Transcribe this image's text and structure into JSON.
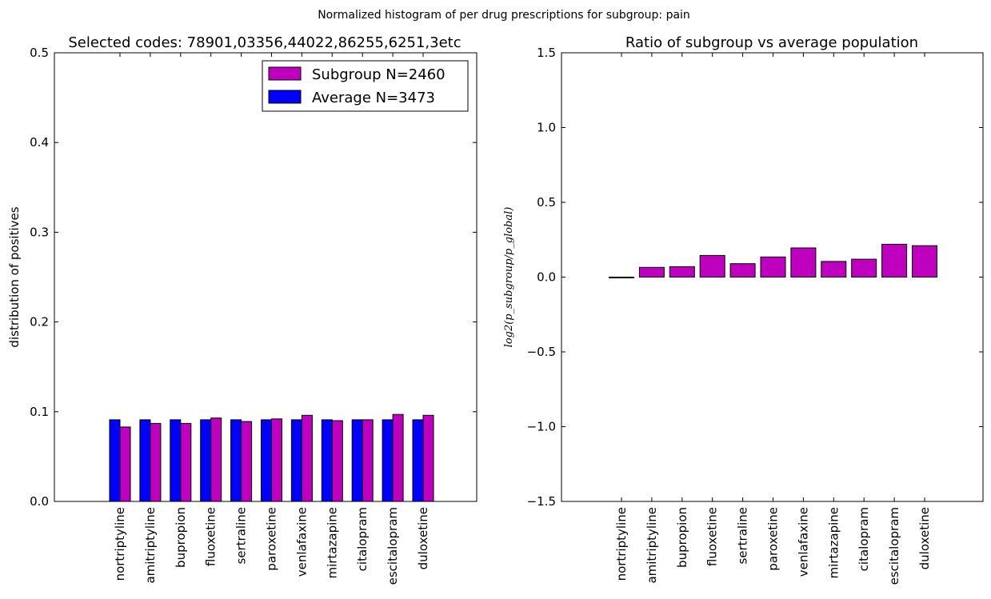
{
  "figure": {
    "suptitle": "Normalized histogram of per drug prescriptions for subgroup: pain"
  },
  "colors": {
    "subgroup": "#bf00bf",
    "average": "#0000ff",
    "edge": "#000000",
    "background": "#ffffff"
  },
  "chart_data": [
    {
      "type": "bar",
      "title": "Selected codes: 78901,03356,44022,86255,6251,3etc",
      "xlabel": "",
      "ylabel": "distribution of positives",
      "ylim": [
        0.0,
        0.5
      ],
      "yticks": [
        "0.0",
        "0.1",
        "0.2",
        "0.3",
        "0.4",
        "0.5"
      ],
      "grid": false,
      "legend_position": "top-right",
      "categories": [
        "nortriptyline",
        "amitriptyline",
        "bupropion",
        "fluoxetine",
        "sertraline",
        "paroxetine",
        "venlafaxine",
        "mirtazapine",
        "citalopram",
        "escitalopram",
        "duloxetine"
      ],
      "series": [
        {
          "name": "Subgroup N=2460",
          "color": "#bf00bf",
          "values": [
            0.083,
            0.087,
            0.087,
            0.093,
            0.089,
            0.092,
            0.096,
            0.09,
            0.091,
            0.097,
            0.096
          ]
        },
        {
          "name": "Average N=3473",
          "color": "#0000ff",
          "values": [
            0.091,
            0.091,
            0.091,
            0.091,
            0.091,
            0.091,
            0.091,
            0.091,
            0.091,
            0.091,
            0.091
          ]
        }
      ]
    },
    {
      "type": "bar",
      "title": "Ratio of subgroup vs average population",
      "xlabel": "",
      "ylabel": "log2(p_subgroup/p_global)",
      "ylim": [
        -1.5,
        1.5
      ],
      "yticks": [
        "−1.5",
        "−1.0",
        "−0.5",
        "0.0",
        "0.5",
        "1.0",
        "1.5"
      ],
      "grid": false,
      "categories": [
        "nortriptyline",
        "amitriptyline",
        "bupropion",
        "fluoxetine",
        "sertraline",
        "paroxetine",
        "venlafaxine",
        "mirtazapine",
        "citalopram",
        "escitalopram",
        "duloxetine"
      ],
      "series": [
        {
          "color": "#bf00bf",
          "values": [
            -0.005,
            0.065,
            0.07,
            0.145,
            0.09,
            0.135,
            0.195,
            0.105,
            0.12,
            0.22,
            0.21
          ]
        }
      ]
    }
  ]
}
